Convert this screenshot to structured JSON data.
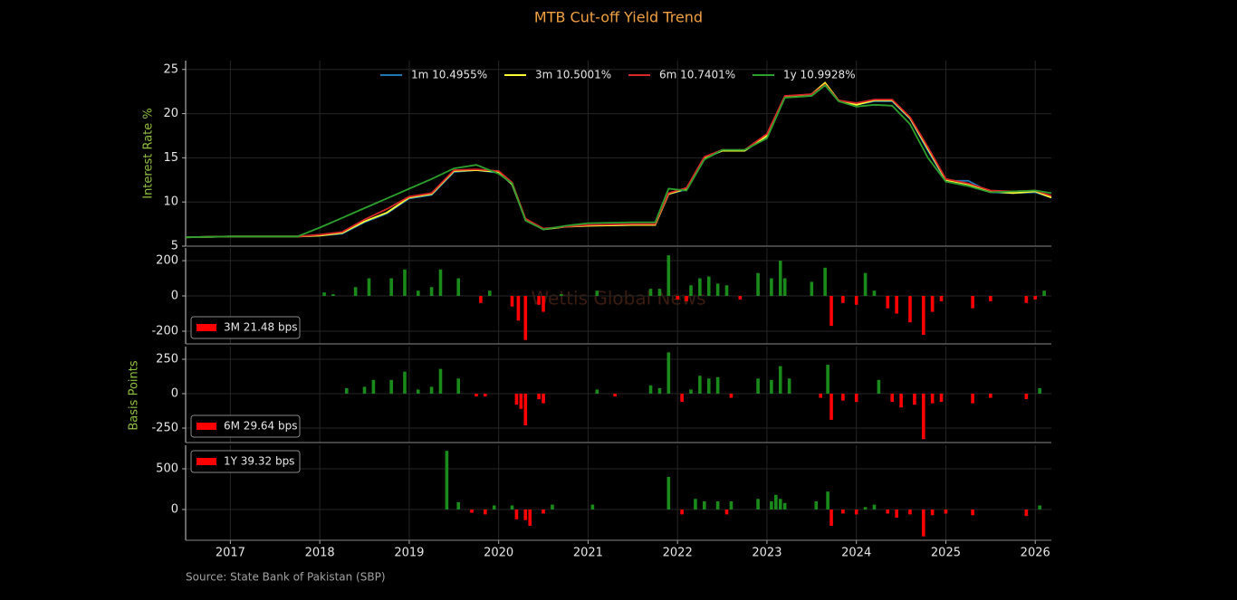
{
  "title": "MTB Cut-off Yield Trend",
  "source": "Source: State Bank of Pakistan (SBP)",
  "watermark": "Wettis Global News",
  "shared_ylabel": "Basis Points",
  "xaxis": {
    "lim": [
      2016.5,
      2026.18
    ],
    "ticks": [
      2017,
      2018,
      2019,
      2020,
      2021,
      2022,
      2023,
      2024,
      2025,
      2026
    ]
  },
  "chart_data": [
    {
      "type": "line",
      "ylabel": "Interest Rate %",
      "ylim": [
        5,
        26
      ],
      "yticks": [
        5,
        10,
        15,
        20,
        25
      ],
      "grid": true,
      "legend": "upper center",
      "x": [
        2016.5,
        2017.0,
        2017.5,
        2017.75,
        2018.0,
        2018.25,
        2018.5,
        2018.75,
        2019.0,
        2019.25,
        2019.5,
        2019.75,
        2020.0,
        2020.15,
        2020.3,
        2020.5,
        2020.75,
        2021.0,
        2021.5,
        2021.75,
        2021.9,
        2022.1,
        2022.3,
        2022.5,
        2022.75,
        2023.0,
        2023.2,
        2023.5,
        2023.65,
        2023.8,
        2024.0,
        2024.2,
        2024.4,
        2024.6,
        2024.8,
        2025.0,
        2025.25,
        2025.5,
        2025.75,
        2026.0,
        2026.18
      ],
      "series": [
        {
          "name": "1m 10.4955%",
          "color": "#1f77b4",
          "values": [
            6,
            6.1,
            6.1,
            6.1,
            6.2,
            6.4,
            7.7,
            8.7,
            10.4,
            10.8,
            13.4,
            13.6,
            13.3,
            12,
            8,
            6.9,
            7.2,
            7.3,
            7.4,
            7.4,
            10.9,
            11.4,
            14.9,
            15.8,
            15.8,
            17.4,
            21.9,
            22.1,
            23.4,
            21.5,
            21,
            21.4,
            21.4,
            19.4,
            15.8,
            12.4,
            12.4,
            11.1,
            11,
            11.1,
            10.5
          ]
        },
        {
          "name": "3m 10.5001%",
          "color": "#ffff33",
          "values": [
            6,
            6.1,
            6.1,
            6.1,
            6.2,
            6.5,
            7.8,
            8.8,
            10.5,
            10.9,
            13.5,
            13.6,
            13.4,
            12,
            8,
            6.9,
            7.2,
            7.3,
            7.4,
            7.4,
            10.9,
            11.5,
            15,
            15.8,
            15.8,
            17.5,
            21.9,
            22.2,
            23.5,
            21.5,
            21,
            21.5,
            21.5,
            19.5,
            16,
            12.5,
            12,
            11.2,
            11,
            11.2,
            10.5
          ]
        },
        {
          "name": "6m 10.7401%",
          "color": "#d62728",
          "values": [
            6,
            6.1,
            6.1,
            6.1,
            6.3,
            6.6,
            8,
            9.2,
            10.6,
            11,
            13.6,
            13.7,
            13.5,
            12.2,
            8.1,
            7,
            7.2,
            7.4,
            7.5,
            7.5,
            11,
            11.6,
            15.1,
            15.9,
            15.9,
            17.7,
            22,
            22.2,
            23.3,
            21.5,
            21.2,
            21.6,
            21.6,
            19.6,
            16.2,
            12.6,
            12.1,
            11.3,
            11.2,
            11.3,
            10.7
          ]
        },
        {
          "name": "1y 10.9928%",
          "color": "#2ca02c",
          "values": [
            6,
            6.1,
            6.1,
            6.1,
            7.1,
            8.2,
            9.3,
            10.4,
            11.5,
            12.6,
            13.8,
            14.2,
            13.2,
            12.1,
            7.9,
            6.9,
            7.3,
            7.6,
            7.7,
            7.7,
            11.5,
            11.3,
            14.8,
            15.9,
            15.9,
            17.2,
            21.8,
            22,
            23.2,
            21.4,
            20.8,
            21,
            20.9,
            18.8,
            15,
            12.3,
            11.8,
            11.1,
            11.2,
            11.3,
            11
          ]
        }
      ]
    },
    {
      "type": "bar",
      "ylim": [
        -272,
        272
      ],
      "yticks": [
        -200,
        0,
        200
      ],
      "grid": true,
      "legend": "lower left",
      "series_name": "3M 21.48 bps",
      "legend_color": "#ff0000",
      "pos_color": "#1a8a1a",
      "neg_color": "#ff0000",
      "x": [
        2018.05,
        2018.15,
        2018.4,
        2018.55,
        2018.8,
        2018.95,
        2019.1,
        2019.25,
        2019.35,
        2019.55,
        2019.8,
        2019.9,
        2020.15,
        2020.22,
        2020.3,
        2020.45,
        2020.5,
        2020.7,
        2021.1,
        2021.7,
        2021.8,
        2021.9,
        2022.0,
        2022.1,
        2022.15,
        2022.25,
        2022.35,
        2022.45,
        2022.55,
        2022.7,
        2022.9,
        2023.05,
        2023.15,
        2023.2,
        2023.5,
        2023.65,
        2023.72,
        2023.85,
        2024.0,
        2024.1,
        2024.2,
        2024.35,
        2024.45,
        2024.6,
        2024.75,
        2024.85,
        2024.95,
        2025.3,
        2025.5,
        2025.9,
        2026.0,
        2026.1
      ],
      "values": [
        20,
        10,
        50,
        100,
        100,
        150,
        30,
        50,
        150,
        100,
        -40,
        30,
        -60,
        -140,
        -250,
        -50,
        -90,
        10,
        30,
        40,
        40,
        230,
        -20,
        -30,
        60,
        100,
        110,
        70,
        60,
        -20,
        130,
        100,
        200,
        100,
        80,
        160,
        -170,
        -40,
        -50,
        130,
        30,
        -70,
        -100,
        -150,
        -220,
        -90,
        -30,
        -70,
        -30,
        -40,
        -20,
        30
      ]
    },
    {
      "type": "bar",
      "ylim": [
        -355,
        342
      ],
      "yticks": [
        -250,
        0,
        250
      ],
      "grid": true,
      "legend": "lower left",
      "series_name": "6M 29.64 bps",
      "legend_color": "#ff0000",
      "pos_color": "#1a8a1a",
      "neg_color": "#ff0000",
      "x": [
        2018.3,
        2018.5,
        2018.6,
        2018.8,
        2018.95,
        2019.1,
        2019.25,
        2019.35,
        2019.55,
        2019.75,
        2019.85,
        2020.2,
        2020.25,
        2020.3,
        2020.45,
        2020.5,
        2021.1,
        2021.3,
        2021.7,
        2021.8,
        2021.9,
        2022.05,
        2022.15,
        2022.25,
        2022.35,
        2022.45,
        2022.6,
        2022.9,
        2023.05,
        2023.15,
        2023.25,
        2023.6,
        2023.68,
        2023.72,
        2023.85,
        2024.0,
        2024.25,
        2024.4,
        2024.5,
        2024.65,
        2024.75,
        2024.85,
        2024.95,
        2025.3,
        2025.5,
        2025.9,
        2026.05
      ],
      "values": [
        40,
        50,
        100,
        100,
        160,
        30,
        50,
        180,
        110,
        -20,
        -20,
        -80,
        -110,
        -230,
        -40,
        -70,
        30,
        -20,
        60,
        40,
        300,
        -60,
        30,
        130,
        110,
        120,
        -30,
        110,
        100,
        200,
        110,
        -30,
        210,
        -190,
        -50,
        -60,
        100,
        -60,
        -100,
        -80,
        -330,
        -70,
        -60,
        -70,
        -30,
        -40,
        40
      ]
    },
    {
      "type": "bar",
      "ylim": [
        -378,
        789
      ],
      "yticks": [
        0,
        500
      ],
      "grid": true,
      "legend": "upper left",
      "series_name": "1Y 39.32 bps",
      "legend_color": "#ff0000",
      "pos_color": "#1a8a1a",
      "neg_color": "#ff0000",
      "x": [
        2019.42,
        2019.55,
        2019.7,
        2019.85,
        2019.95,
        2020.15,
        2020.2,
        2020.3,
        2020.35,
        2020.5,
        2020.6,
        2021.05,
        2021.9,
        2022.05,
        2022.2,
        2022.3,
        2022.45,
        2022.55,
        2022.6,
        2022.9,
        2023.05,
        2023.1,
        2023.15,
        2023.2,
        2023.55,
        2023.68,
        2023.72,
        2023.85,
        2024.0,
        2024.1,
        2024.2,
        2024.35,
        2024.45,
        2024.6,
        2024.75,
        2024.85,
        2025.0,
        2025.3,
        2025.9,
        2026.05
      ],
      "values": [
        720,
        90,
        -40,
        -60,
        50,
        50,
        -120,
        -130,
        -200,
        -50,
        60,
        60,
        400,
        -60,
        130,
        100,
        100,
        -60,
        100,
        130,
        100,
        180,
        130,
        80,
        100,
        220,
        -200,
        -50,
        -60,
        30,
        60,
        -50,
        -100,
        -60,
        -330,
        -70,
        -50,
        -70,
        -80,
        50
      ]
    }
  ]
}
